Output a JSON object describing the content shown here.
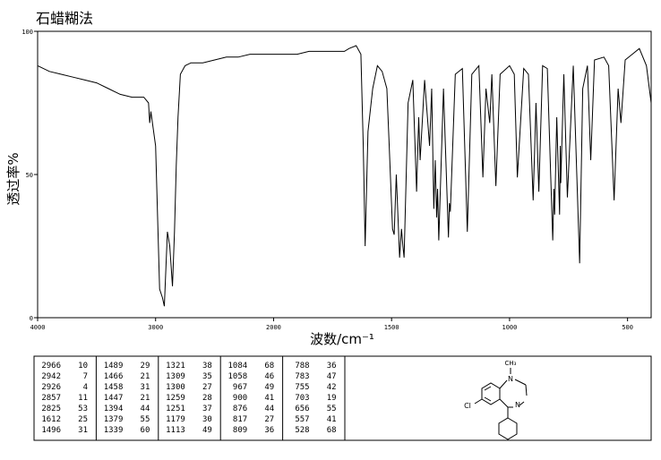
{
  "chart_data": {
    "type": "line",
    "title": "石蜡糊法",
    "x_label": "波数/cm⁻¹",
    "y_label": "透过率%",
    "x": [
      4000,
      3900,
      3800,
      3700,
      3600,
      3500,
      3400,
      3300,
      3200,
      3100,
      3060,
      3050,
      3040,
      3000,
      2966,
      2942,
      2926,
      2900,
      2880,
      2857,
      2840,
      2825,
      2810,
      2790,
      2750,
      2700,
      2600,
      2500,
      2400,
      2300,
      2200,
      2100,
      2000,
      1900,
      1850,
      1800,
      1750,
      1700,
      1680,
      1650,
      1630,
      1620,
      1612,
      1600,
      1580,
      1560,
      1540,
      1520,
      1510,
      1496,
      1489,
      1480,
      1466,
      1458,
      1452,
      1447,
      1430,
      1410,
      1394,
      1385,
      1379,
      1360,
      1339,
      1330,
      1321,
      1315,
      1309,
      1305,
      1300,
      1280,
      1259,
      1255,
      1251,
      1230,
      1200,
      1179,
      1160,
      1130,
      1113,
      1100,
      1084,
      1075,
      1058,
      1040,
      1000,
      980,
      967,
      940,
      920,
      900,
      888,
      876,
      860,
      840,
      817,
      812,
      809,
      800,
      788,
      785,
      783,
      770,
      755,
      730,
      703,
      690,
      670,
      656,
      640,
      600,
      580,
      557,
      540,
      528,
      510,
      480,
      450,
      420,
      400
    ],
    "values": [
      88,
      86,
      85,
      84,
      83,
      82,
      80,
      78,
      77,
      77,
      75,
      68,
      72,
      60,
      10,
      7,
      4,
      30,
      25,
      11,
      30,
      53,
      70,
      85,
      88,
      89,
      89,
      90,
      91,
      91,
      92,
      92,
      92,
      92,
      93,
      93,
      93,
      93,
      94,
      95,
      92,
      60,
      25,
      65,
      80,
      88,
      86,
      80,
      60,
      31,
      29,
      50,
      21,
      31,
      25,
      21,
      75,
      83,
      44,
      70,
      55,
      83,
      60,
      80,
      38,
      55,
      35,
      45,
      27,
      80,
      28,
      40,
      37,
      85,
      87,
      30,
      85,
      88,
      49,
      80,
      68,
      85,
      46,
      85,
      88,
      85,
      49,
      87,
      85,
      41,
      75,
      44,
      88,
      87,
      27,
      45,
      36,
      70,
      36,
      60,
      47,
      85,
      42,
      88,
      19,
      80,
      88,
      55,
      90,
      91,
      88,
      41,
      80,
      68,
      90,
      92,
      94,
      88,
      75
    ],
    "color": "#000000",
    "xlim": [
      4000,
      400
    ],
    "x_scale_break": 2000,
    "x_scale_factor": 2,
    "xticks": [
      4000,
      3000,
      2000,
      1500,
      1000,
      500
    ],
    "ylim": [
      0,
      100
    ],
    "yticks": [
      0,
      50,
      100
    ]
  },
  "peak_table": [
    [
      [
        2966,
        10
      ],
      [
        2942,
        7
      ],
      [
        2926,
        4
      ],
      [
        2857,
        11
      ],
      [
        2825,
        53
      ],
      [
        1612,
        25
      ],
      [
        1496,
        31
      ]
    ],
    [
      [
        1489,
        29
      ],
      [
        1466,
        21
      ],
      [
        1458,
        31
      ],
      [
        1447,
        21
      ],
      [
        1394,
        44
      ],
      [
        1379,
        55
      ],
      [
        1339,
        60
      ]
    ],
    [
      [
        1321,
        38
      ],
      [
        1309,
        35
      ],
      [
        1300,
        27
      ],
      [
        1259,
        28
      ],
      [
        1251,
        37
      ],
      [
        1179,
        30
      ],
      [
        1113,
        49
      ]
    ],
    [
      [
        1084,
        68
      ],
      [
        1058,
        46
      ],
      [
        967,
        49
      ],
      [
        900,
        41
      ],
      [
        876,
        44
      ],
      [
        817,
        27
      ],
      [
        809,
        36
      ]
    ],
    [
      [
        788,
        36
      ],
      [
        783,
        47
      ],
      [
        755,
        42
      ],
      [
        703,
        19
      ],
      [
        656,
        55
      ],
      [
        557,
        41
      ],
      [
        528,
        68
      ]
    ]
  ],
  "structure": {
    "methyl": "CH₃",
    "n1": "N",
    "n4": "N",
    "chlorine": "Cl"
  }
}
